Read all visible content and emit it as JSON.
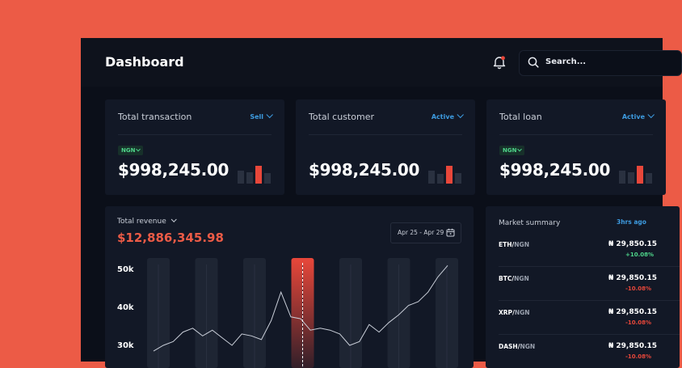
{
  "colors": {
    "background": "#EC5B46",
    "panel": "#121826",
    "accent_red": "#E8473A",
    "accent_blue": "#3D9BE0",
    "positive": "#4ED58A"
  },
  "header": {
    "title": "Dashboard",
    "notification_icon": "bell-icon",
    "search_placeholder": "Search..."
  },
  "cards": [
    {
      "title": "Total transaction",
      "filter": "Sell",
      "currency": "NGN",
      "value": "$998,245.00"
    },
    {
      "title": "Total customer",
      "filter": "Active",
      "currency": "",
      "value": "$998,245.00"
    },
    {
      "title": "Total loan",
      "filter": "Active",
      "currency": "NGN",
      "value": "$998,245.00"
    }
  ],
  "revenue": {
    "label": "Total revenue",
    "value": "$12,886,345.98",
    "date_range": "Apr 25 - Apr 29"
  },
  "chart_data": {
    "type": "line",
    "title": "",
    "xlabel": "",
    "ylabel": "",
    "y_ticks": [
      "50k",
      "40k",
      "30k"
    ],
    "ylim": [
      28000,
      52000
    ],
    "highlight_bar_index": 3,
    "series": [
      {
        "values": [
          28500,
          30000,
          31000,
          33500,
          34500,
          32500,
          34000,
          32000,
          30000,
          33000,
          32500,
          31500,
          36500,
          44000,
          37500,
          37000,
          34000,
          34500,
          34000,
          33000,
          30000,
          31000,
          35500,
          33500,
          36000,
          38000,
          40500,
          41500,
          44000,
          48000,
          51000
        ]
      }
    ]
  },
  "market": {
    "title": "Market summary",
    "updated": "3hrs ago",
    "rows": [
      {
        "base": "ETH",
        "quote": "NGN",
        "price": "₦ 29,850.15",
        "change": "+10.08%",
        "direction": "up"
      },
      {
        "base": "BTC",
        "quote": "NGN",
        "price": "₦ 29,850.15",
        "change": "-10.08%",
        "direction": "down"
      },
      {
        "base": "XRP",
        "quote": "NGN",
        "price": "₦ 29,850.15",
        "change": "-10.08%",
        "direction": "down"
      },
      {
        "base": "DASH",
        "quote": "NGN",
        "price": "₦ 29,850.15",
        "change": "-10.08%",
        "direction": "down"
      }
    ]
  }
}
